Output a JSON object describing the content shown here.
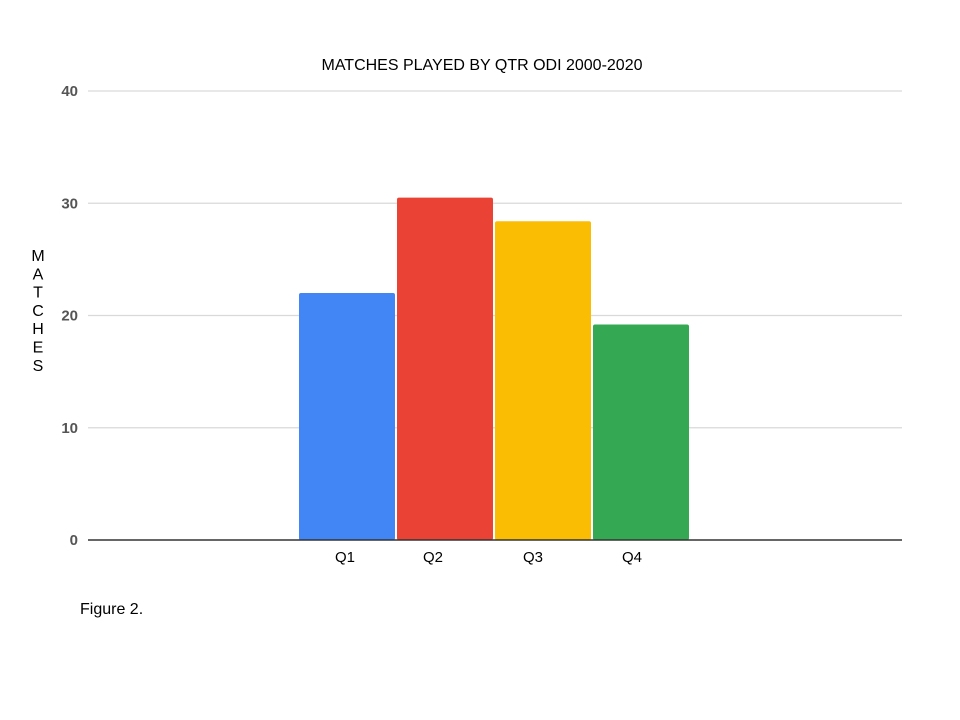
{
  "chart_data": {
    "type": "bar",
    "title": "MATCHES PLAYED BY QTR ODI 2000-2020",
    "xlabel": "",
    "ylabel": "MATCHES",
    "categories": [
      "Q1",
      "Q2",
      "Q3",
      "Q4"
    ],
    "values": [
      22,
      30.5,
      28.4,
      19.2
    ],
    "colors": [
      "#4285F4",
      "#EA4335",
      "#FBBC04",
      "#34A853"
    ],
    "ylim": [
      0,
      40
    ],
    "yticks": [
      "0",
      "10",
      "20",
      "30",
      "40"
    ],
    "grid": true
  },
  "caption": "Figure 2."
}
